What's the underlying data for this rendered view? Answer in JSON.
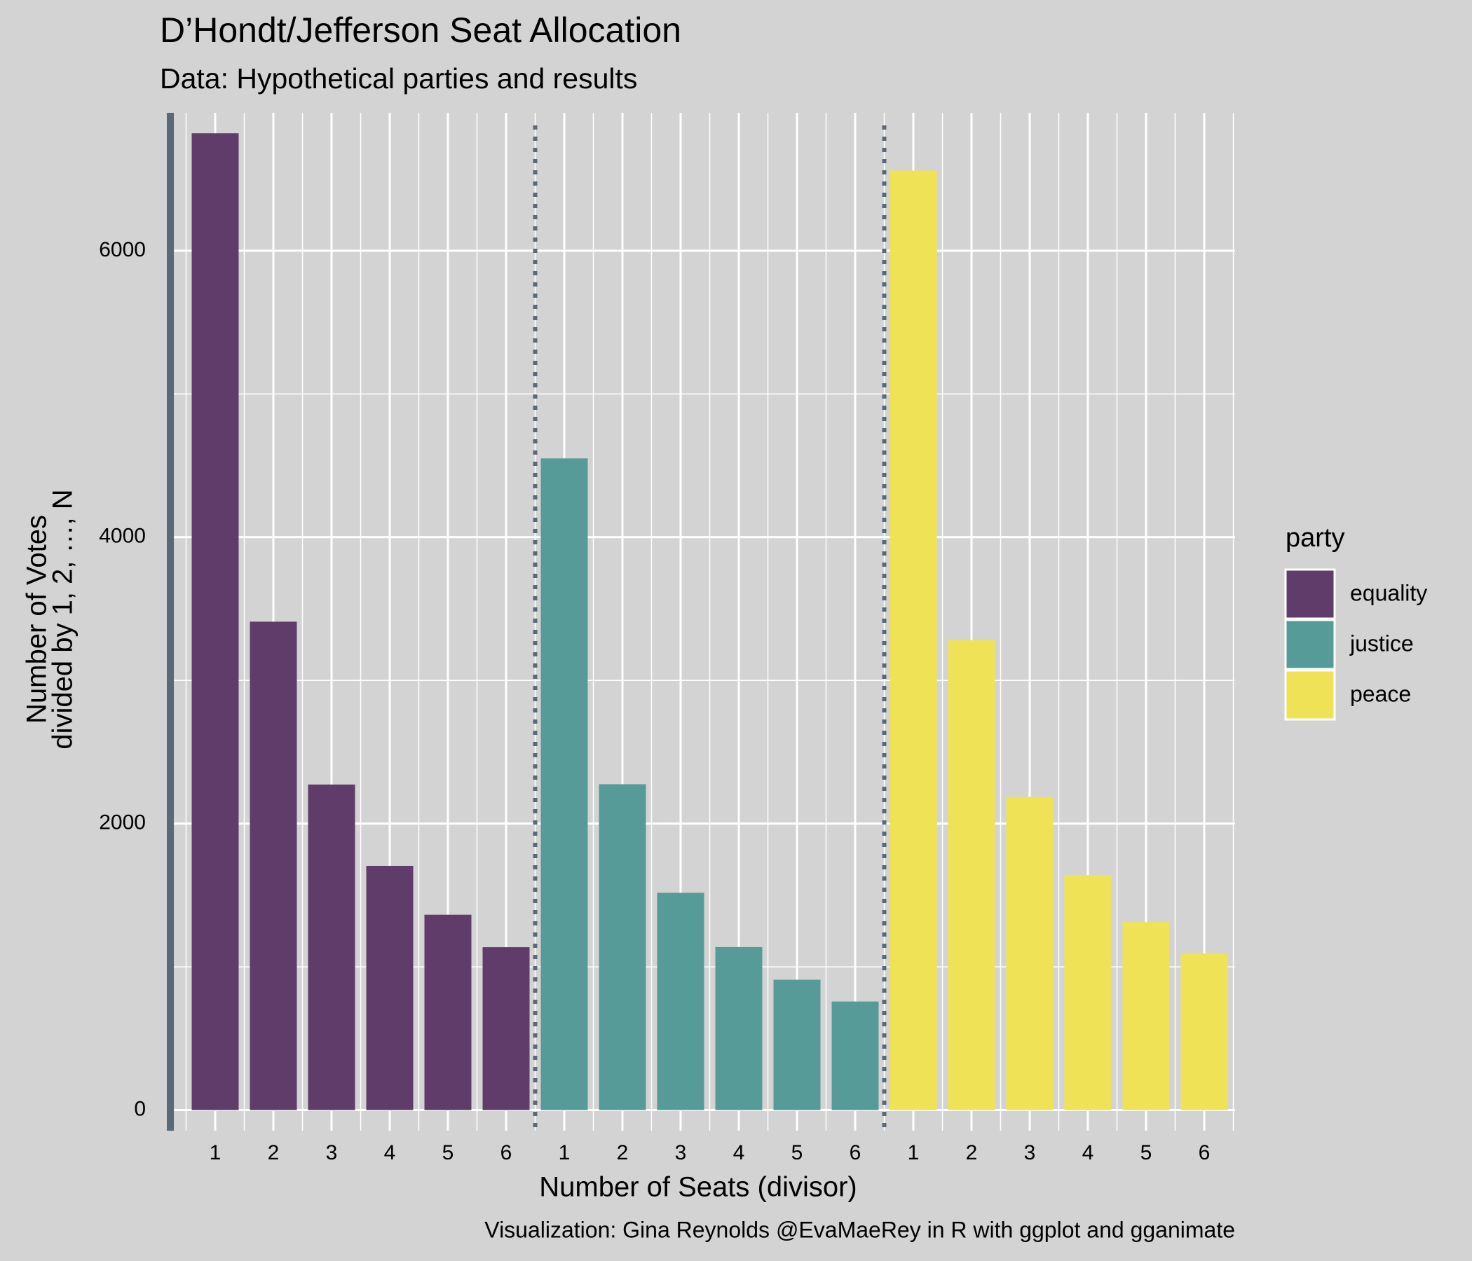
{
  "chart_data": {
    "type": "bar",
    "title": "D’Hondt/Jefferson Seat Allocation",
    "subtitle": "Data: Hypothetical parties and results",
    "x_label": "Number of Seats (divisor)",
    "y_label": [
      "Number of Votes",
      "divided by 1, 2, …, N"
    ],
    "caption": "Visualization: Gina Reynolds @EvaMaeRey in R with ggplot and gganimate",
    "legend_title": "party",
    "categories": [
      "1",
      "2",
      "3",
      "4",
      "5",
      "6"
    ],
    "series": [
      {
        "name": "equality",
        "color": "#5f3c6a",
        "values": [
          6820,
          3410,
          2273,
          1705,
          1364,
          1137
        ]
      },
      {
        "name": "justice",
        "color": "#569b97",
        "values": [
          4550,
          2275,
          1517,
          1138,
          910,
          758
        ]
      },
      {
        "name": "peace",
        "color": "#f0e256",
        "values": [
          6560,
          3280,
          2187,
          1640,
          1312,
          1093
        ]
      }
    ],
    "ylim": [
      -144,
      6963
    ],
    "yticks": [
      0,
      2000,
      4000,
      6000
    ],
    "yminorticks": [
      1000,
      3000,
      5000
    ],
    "grid": true,
    "legend": "right"
  }
}
